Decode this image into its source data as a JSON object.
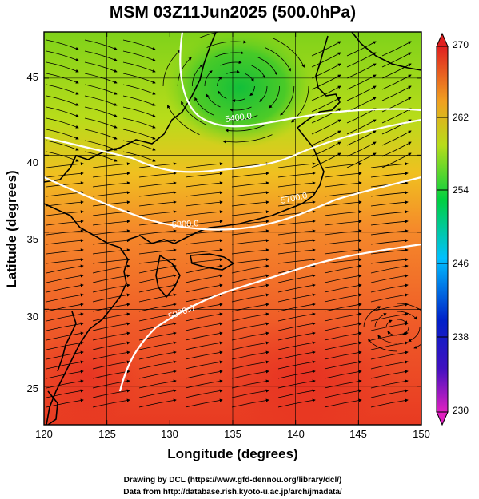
{
  "title": "MSM 03Z11Jun2025 (500.0hPa)",
  "x_axis": {
    "label": "Longitude (degrees)",
    "range": [
      120,
      150
    ],
    "ticks": [
      "120",
      "125",
      "130",
      "135",
      "140",
      "145",
      "150"
    ]
  },
  "y_axis": {
    "label": "Latitude (degrees)",
    "range": [
      22.5,
      48
    ],
    "ticks": [
      "25",
      "30",
      "35",
      "40",
      "45"
    ]
  },
  "colorbar": {
    "range": [
      230,
      270
    ],
    "ticks": [
      "270",
      "262",
      "254",
      "246",
      "238",
      "230"
    ],
    "colors": [
      "#e020c0",
      "#0020c0",
      "#00c0ff",
      "#00d040",
      "#e8d000",
      "#ff7000",
      "#e02020"
    ]
  },
  "contour_labels": [
    "5400.0",
    "5700.0",
    "5800.0",
    "5900.0"
  ],
  "credits": {
    "line1": "Drawing by DCL (https://www.gfd-dennou.org/library/dcl/)",
    "line2": "Data from http://database.rish.kyoto-u.ac.jp/arch/jmadata/"
  },
  "colors": {
    "background": "#ffffff",
    "coast": "#000000",
    "contour": "#ffffff",
    "streamline": "#000000"
  }
}
